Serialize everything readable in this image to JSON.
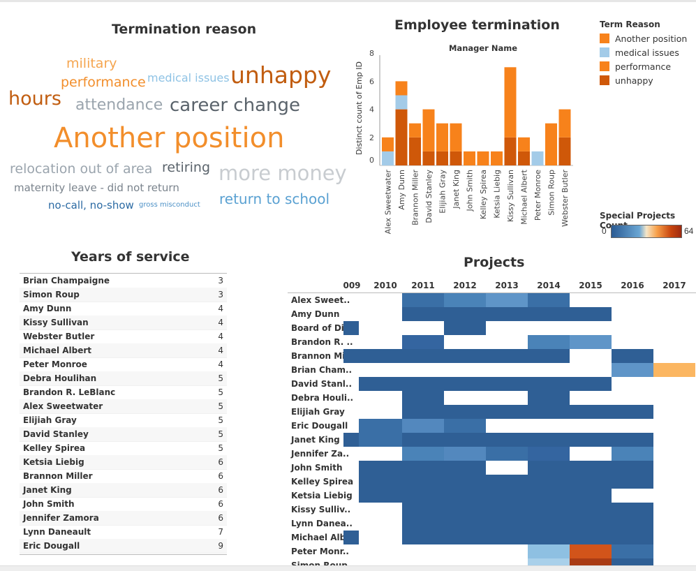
{
  "wordcloud": {
    "title": "Termination reason",
    "words": [
      {
        "text": "military",
        "color": "#f5a54f"
      },
      {
        "text": "performance",
        "color": "#f28e2b"
      },
      {
        "text": "medical issues",
        "color": "#8fc3e5"
      },
      {
        "text": "unhappy",
        "color": "#c15d10"
      },
      {
        "text": "hours",
        "color": "#c15d10"
      },
      {
        "text": "attendance",
        "color": "#9aa4ad"
      },
      {
        "text": "career change",
        "color": "#5a636b"
      },
      {
        "text": "Another position",
        "color": "#f28e2b"
      },
      {
        "text": "relocation out of area",
        "color": "#9aa4ad"
      },
      {
        "text": "retiring",
        "color": "#5a636b"
      },
      {
        "text": "more money",
        "color": "#c8ccd0"
      },
      {
        "text": "maternity leave - did not return",
        "color": "#7a838c"
      },
      {
        "text": "no-call, no-show",
        "color": "#2b6aa3"
      },
      {
        "text": "gross misconduct",
        "color": "#4d91c6"
      },
      {
        "text": "return to school",
        "color": "#5aa1d2"
      }
    ]
  },
  "termination_chart": {
    "title": "Employee termination",
    "subtitle": "Manager Name",
    "colors": {
      "Another position": "#f7821b",
      "medical issues": "#a3cbe8",
      "performance": "#f7821b",
      "unhappy": "#cf5809"
    }
  },
  "chart_data": {
    "type": "bar",
    "title": "Employee termination",
    "xlabel": "Manager Name",
    "ylabel": "Distinct count of Emp ID",
    "ylim": [
      0,
      8.5
    ],
    "yticks": [
      0,
      2,
      4,
      6,
      8
    ],
    "categories": [
      "Alex Sweetwater",
      "Amy Dunn",
      "Brannon Miller",
      "David Stanley",
      "Elijiah Gray",
      "Janet King",
      "John Smith",
      "Kelley Spirea",
      "Ketsia Liebig",
      "Kissy Sullivan",
      "Michael Albert",
      "Peter Monroe",
      "Simon Roup",
      "Webster Butler"
    ],
    "series": [
      {
        "name": "unhappy",
        "values": [
          0,
          4,
          2,
          1,
          1,
          1,
          0,
          0,
          0,
          2,
          1,
          0,
          0,
          2
        ]
      },
      {
        "name": "medical issues",
        "values": [
          1,
          1,
          0,
          0,
          0,
          0,
          0,
          0,
          0,
          0,
          0,
          1,
          0,
          0
        ]
      },
      {
        "name": "performance",
        "values": [
          1,
          0,
          1,
          3,
          2,
          2,
          1,
          1,
          1,
          5,
          1,
          0,
          3,
          2
        ]
      },
      {
        "name": "Another position",
        "values": [
          0,
          1,
          0,
          0,
          0,
          0,
          0,
          0,
          0,
          0,
          0,
          0,
          0,
          0
        ]
      }
    ]
  },
  "legend": {
    "title": "Term Reason",
    "items": [
      {
        "label": "Another position",
        "color": "#f7821b"
      },
      {
        "label": "medical issues",
        "color": "#a3cbe8"
      },
      {
        "label": "performance",
        "color": "#f7821b"
      },
      {
        "label": "unhappy",
        "color": "#cf5809"
      }
    ],
    "special_title": "Special Projects Count",
    "special_min": "0",
    "special_max": "64"
  },
  "years": {
    "title": "Years of service",
    "rows": [
      {
        "name": "Brian Champaigne",
        "value": "3"
      },
      {
        "name": "Simon Roup",
        "value": "3"
      },
      {
        "name": "Amy Dunn",
        "value": "4"
      },
      {
        "name": "Kissy Sullivan",
        "value": "4"
      },
      {
        "name": "Webster Butler",
        "value": "4"
      },
      {
        "name": "Michael Albert",
        "value": "4"
      },
      {
        "name": "Peter Monroe",
        "value": "4"
      },
      {
        "name": "Debra Houlihan",
        "value": "5"
      },
      {
        "name": "Brandon R. LeBlanc",
        "value": "5"
      },
      {
        "name": "Alex Sweetwater",
        "value": "5"
      },
      {
        "name": "Elijiah Gray",
        "value": "5"
      },
      {
        "name": "David Stanley",
        "value": "5"
      },
      {
        "name": "Kelley Spirea",
        "value": "5"
      },
      {
        "name": "Ketsia Liebig",
        "value": "6"
      },
      {
        "name": "Brannon Miller",
        "value": "6"
      },
      {
        "name": "Janet King",
        "value": "6"
      },
      {
        "name": "John Smith",
        "value": "6"
      },
      {
        "name": "Jennifer Zamora",
        "value": "6"
      },
      {
        "name": "Lynn Daneault",
        "value": "7"
      },
      {
        "name": "Eric Dougall",
        "value": "9"
      }
    ]
  },
  "projects": {
    "title": "Projects",
    "years": [
      "009",
      "2010",
      "2011",
      "2012",
      "2013",
      "2014",
      "2015",
      "2016",
      "2017"
    ],
    "rows": [
      {
        "name": "Alex Sweet..",
        "cells": [
          0,
          0,
          1,
          1,
          1,
          1,
          0,
          0,
          0
        ],
        "shades": [
          "",
          "",
          "#3a6fa6",
          "#4a83b8",
          "#5f95c8",
          "#3a6fa6",
          "",
          "",
          ""
        ]
      },
      {
        "name": "Amy Dunn",
        "cells": [
          0,
          0,
          1,
          1,
          1,
          1,
          1,
          0,
          0
        ],
        "shades": [
          "",
          "",
          "#2f5f95",
          "#2f5f95",
          "#2f5f95",
          "#2f5f95",
          "#2f5f95",
          "",
          ""
        ]
      },
      {
        "name": "Board of Di..",
        "cells": [
          1,
          0,
          0,
          1,
          0,
          0,
          0,
          0,
          0
        ],
        "shades": [
          "#2f5f95",
          "",
          "",
          "#2f5f95",
          "",
          "",
          "",
          "",
          ""
        ]
      },
      {
        "name": "Brandon R. ..",
        "cells": [
          0,
          0,
          1,
          0,
          0,
          1,
          1,
          0,
          0
        ],
        "shades": [
          "",
          "",
          "#3465a0",
          "",
          "",
          "#4a83b8",
          "#5f95c8",
          "",
          ""
        ]
      },
      {
        "name": "Brannon Mi..",
        "cells": [
          1,
          1,
          1,
          1,
          1,
          1,
          0,
          1,
          0
        ],
        "shades": [
          "#2f5f95",
          "#2f5f95",
          "#2f5f95",
          "#2f5f95",
          "#2f5f95",
          "#2f5f95",
          "",
          "#2f5f95",
          ""
        ]
      },
      {
        "name": "Brian Cham..",
        "cells": [
          0,
          0,
          0,
          0,
          0,
          0,
          0,
          1,
          1
        ],
        "shades": [
          "",
          "",
          "",
          "",
          "",
          "",
          "",
          "#5f95c8",
          "#fbb661"
        ]
      },
      {
        "name": "David Stanl..",
        "cells": [
          0,
          1,
          1,
          1,
          1,
          1,
          1,
          0,
          0
        ],
        "shades": [
          "",
          "#2f5f95",
          "#2f5f95",
          "#2f5f95",
          "#2f5f95",
          "#2f5f95",
          "#2f5f95",
          "",
          ""
        ]
      },
      {
        "name": "Debra Houli..",
        "cells": [
          0,
          0,
          1,
          0,
          0,
          1,
          0,
          0,
          0
        ],
        "shades": [
          "",
          "",
          "#2f5f95",
          "",
          "",
          "#2f5f95",
          "",
          "",
          ""
        ]
      },
      {
        "name": "Elijiah Gray",
        "cells": [
          0,
          0,
          1,
          1,
          1,
          1,
          1,
          1,
          0
        ],
        "shades": [
          "",
          "",
          "#2f5f95",
          "#2f5f95",
          "#2f5f95",
          "#2f5f95",
          "#2f5f95",
          "#2f5f95",
          ""
        ]
      },
      {
        "name": "Eric Dougall",
        "cells": [
          0,
          1,
          1,
          1,
          0,
          0,
          0,
          0,
          0
        ],
        "shades": [
          "",
          "#3a6fa6",
          "#5388be",
          "#3a6fa6",
          "",
          "",
          "",
          "",
          ""
        ]
      },
      {
        "name": "Janet King",
        "cells": [
          1,
          1,
          1,
          1,
          1,
          1,
          1,
          1,
          0
        ],
        "shades": [
          "#2f5f95",
          "#3a6fa6",
          "#2f5f95",
          "#2f5f95",
          "#2f5f95",
          "#2f5f95",
          "#2f5f95",
          "#2f5f95",
          ""
        ]
      },
      {
        "name": "Jennifer Za..",
        "cells": [
          0,
          0,
          1,
          1,
          1,
          1,
          0,
          1,
          0
        ],
        "shades": [
          "",
          "",
          "#4a83b8",
          "#5388be",
          "#3a6fa6",
          "#3465a0",
          "",
          "#4a83b8",
          ""
        ]
      },
      {
        "name": "John Smith",
        "cells": [
          0,
          1,
          1,
          1,
          0,
          1,
          1,
          1,
          0
        ],
        "shades": [
          "",
          "#2f5f95",
          "#2f5f95",
          "#2f5f95",
          "",
          "#2f5f95",
          "#2f5f95",
          "#2f5f95",
          ""
        ]
      },
      {
        "name": "Kelley Spirea",
        "cells": [
          0,
          1,
          1,
          1,
          1,
          1,
          1,
          1,
          0
        ],
        "shades": [
          "",
          "#2f5f95",
          "#2f5f95",
          "#2f5f95",
          "#2f5f95",
          "#2f5f95",
          "#2f5f95",
          "#2f5f95",
          ""
        ]
      },
      {
        "name": "Ketsia Liebig",
        "cells": [
          0,
          1,
          1,
          1,
          1,
          1,
          1,
          0,
          0
        ],
        "shades": [
          "",
          "#2f5f95",
          "#2f5f95",
          "#2f5f95",
          "#2f5f95",
          "#2f5f95",
          "#2f5f95",
          "",
          ""
        ]
      },
      {
        "name": "Kissy Sulliv..",
        "cells": [
          0,
          0,
          1,
          1,
          1,
          1,
          1,
          1,
          0
        ],
        "shades": [
          "",
          "",
          "#2f5f95",
          "#2f5f95",
          "#2f5f95",
          "#2f5f95",
          "#2f5f95",
          "#2f5f95",
          ""
        ]
      },
      {
        "name": "Lynn Danea..",
        "cells": [
          0,
          0,
          1,
          1,
          1,
          1,
          1,
          1,
          0
        ],
        "shades": [
          "",
          "",
          "#2f5f95",
          "#2f5f95",
          "#2f5f95",
          "#2f5f95",
          "#2f5f95",
          "#2f5f95",
          ""
        ]
      },
      {
        "name": "Michael Alb..",
        "cells": [
          1,
          0,
          1,
          1,
          1,
          1,
          1,
          1,
          0
        ],
        "shades": [
          "#2f5f95",
          "",
          "#2f5f95",
          "#2f5f95",
          "#2f5f95",
          "#2f5f95",
          "#2f5f95",
          "#2f5f95",
          ""
        ]
      },
      {
        "name": "Peter Monr..",
        "cells": [
          0,
          0,
          0,
          0,
          0,
          1,
          1,
          1,
          0
        ],
        "shades": [
          "",
          "",
          "",
          "",
          "",
          "#8ec0e2",
          "#d2541a",
          "#3a6fa6",
          ""
        ]
      },
      {
        "name": "Simon Roup",
        "cells": [
          0,
          0,
          0,
          0,
          0,
          1,
          1,
          1,
          0
        ],
        "shades": [
          "",
          "",
          "",
          "",
          "",
          "#a9d0ea",
          "#a93c15",
          "#2f5f95",
          ""
        ]
      }
    ]
  }
}
